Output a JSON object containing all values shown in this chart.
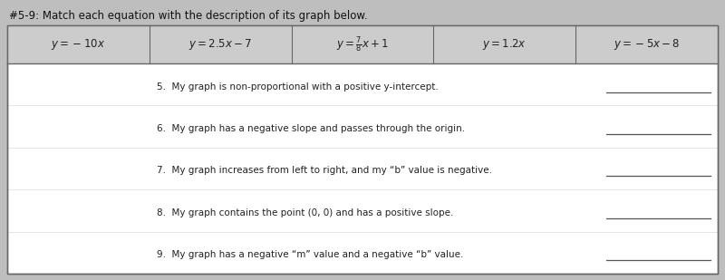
{
  "title": "#5-9: Match each equation with the description of its graph below.",
  "header_math": [
    "$y = -10x$",
    "$y = 2.5x - 7$",
    "$y = \\frac{7}{8}x + 1$",
    "$y = 1.2x$",
    "$y = -5x - 8$"
  ],
  "questions": [
    "5.  My graph is non-proportional with a positive y-intercept.",
    "6.  My graph has a negative slope and passes through the origin.",
    "7.  My graph increases from left to right, and my “b” value is negative.",
    "8.  My graph contains the point (0, 0) and has a positive slope.",
    "9.  My graph has a negative “m” value and a negative “b” value."
  ],
  "fig_bg": "#bebebe",
  "header_bg": "#cccccc",
  "body_bg": "#e0e0e0",
  "table_bg": "#ffffff",
  "line_color": "#666666",
  "text_color": "#222222",
  "title_color": "#111111"
}
